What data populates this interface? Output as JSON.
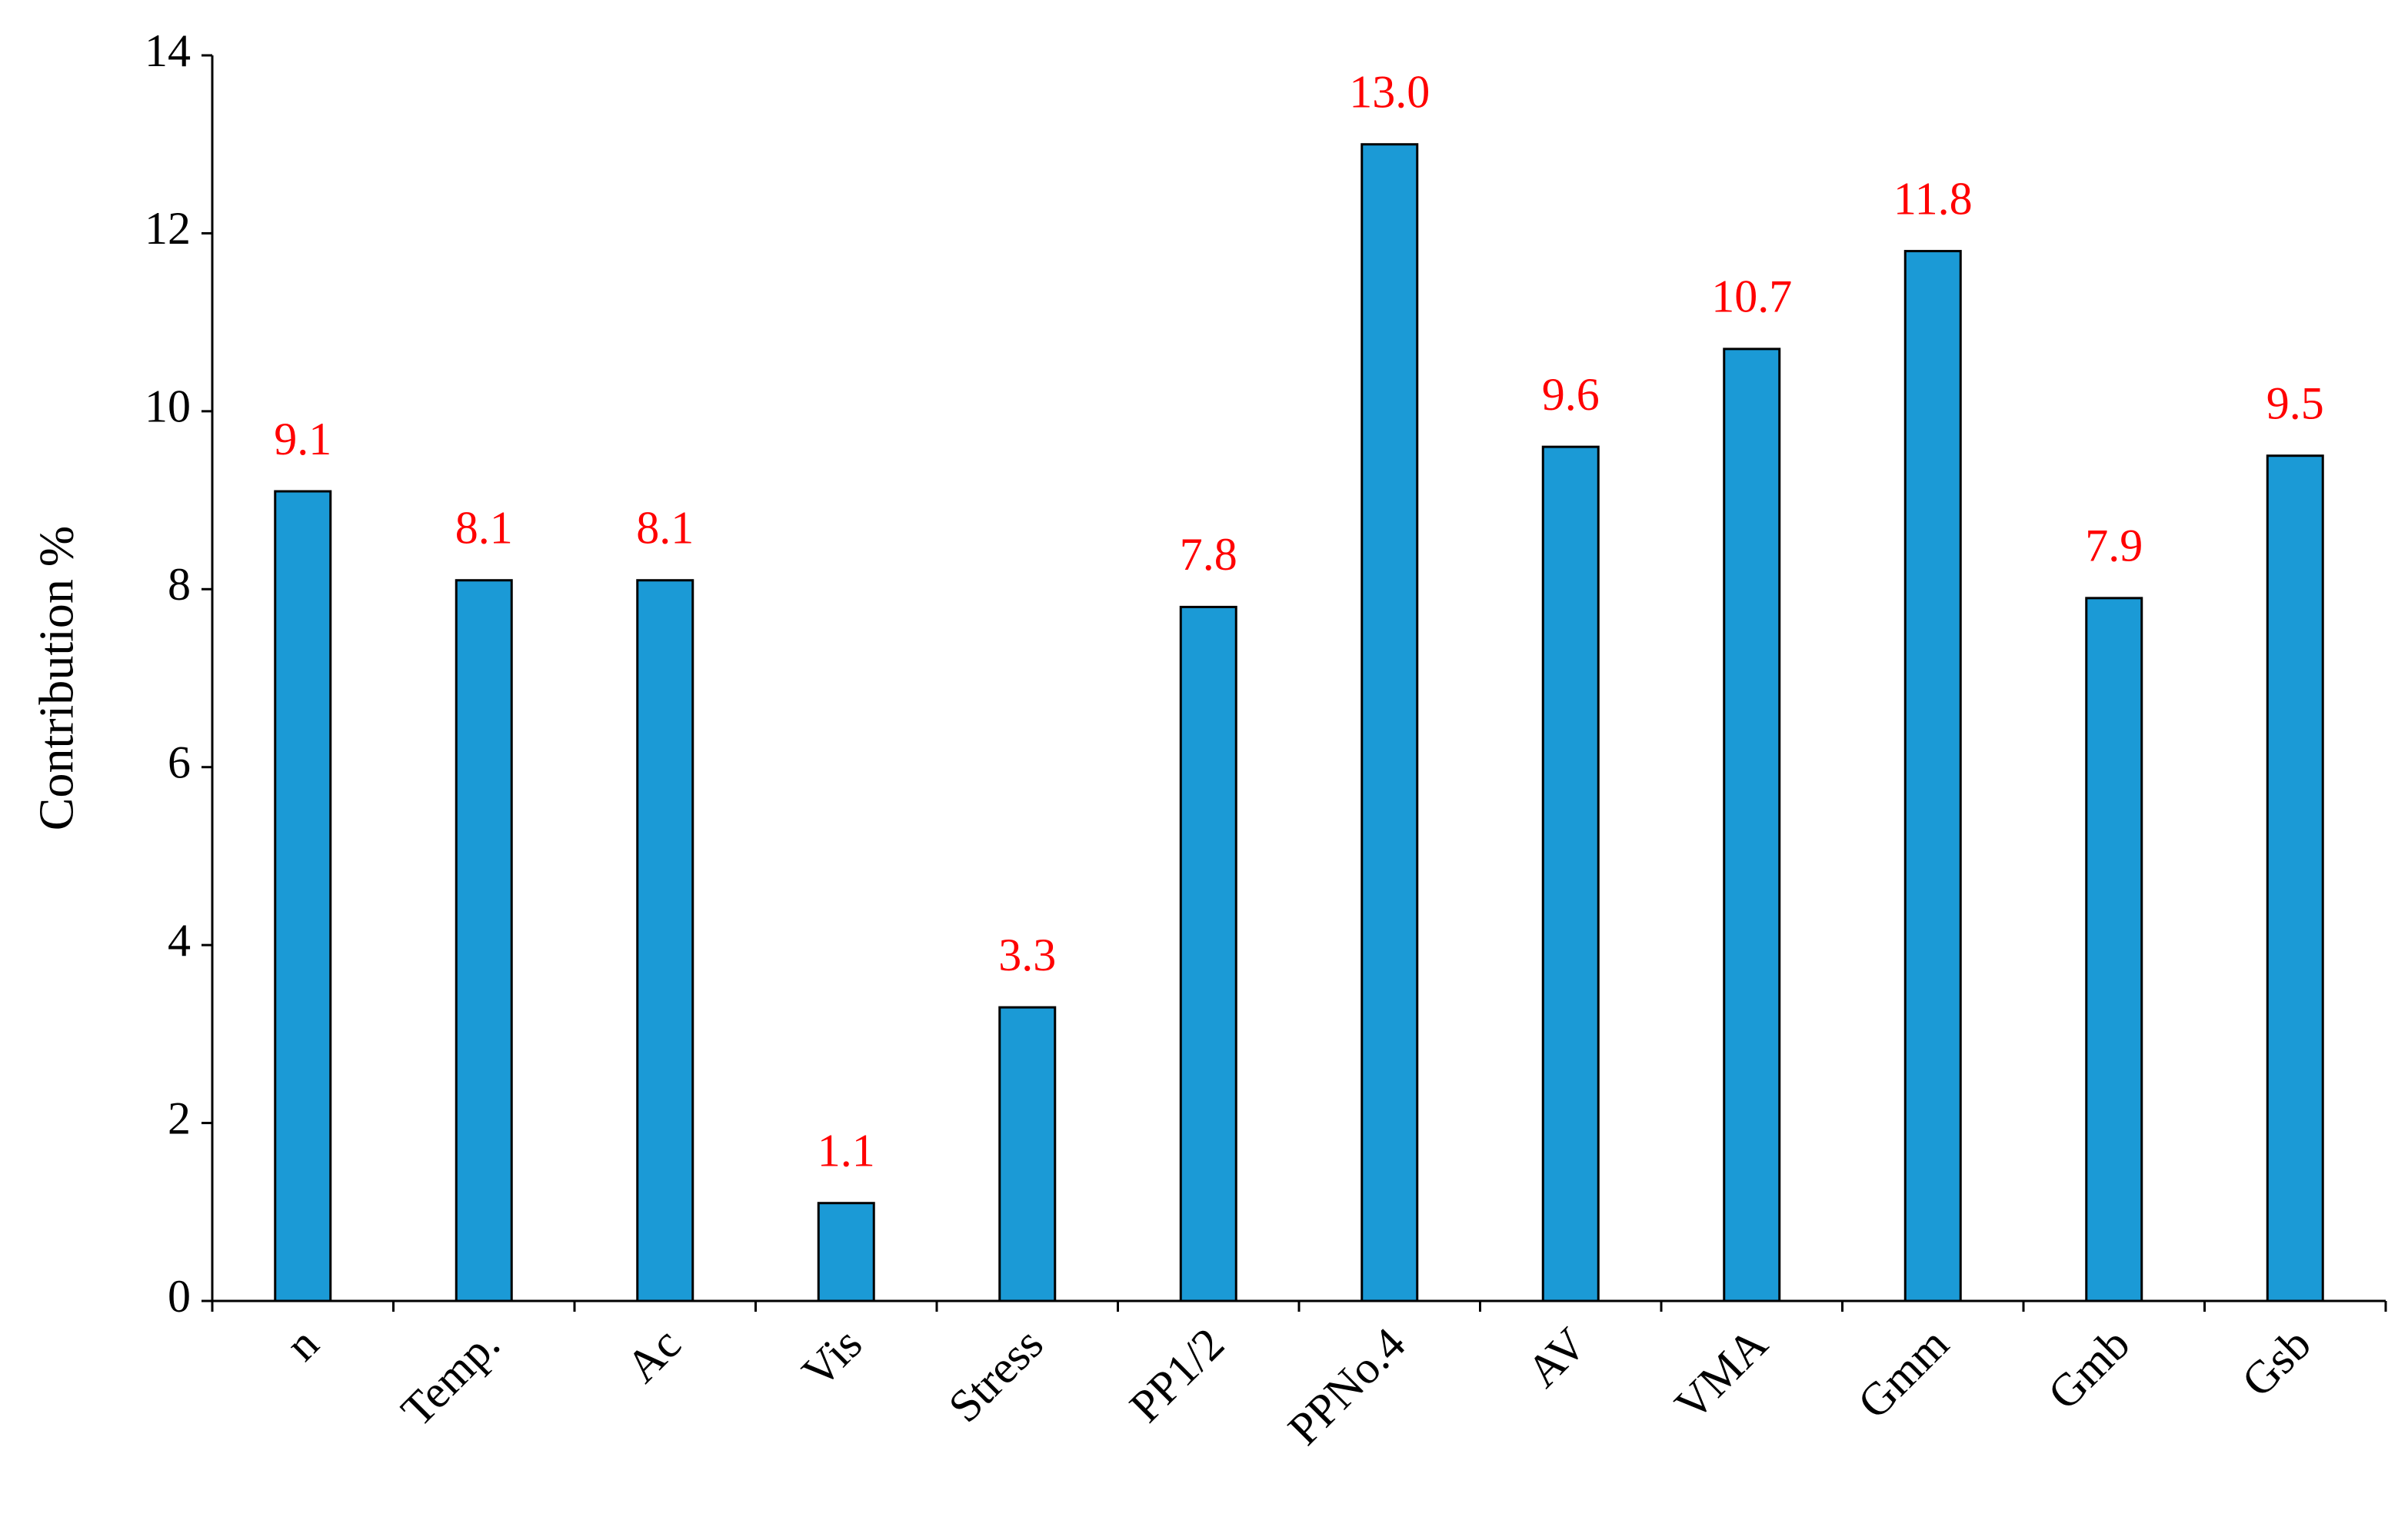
{
  "chart_data": {
    "type": "bar",
    "y_label": "Contribution %",
    "categories": [
      "n",
      "Temp.",
      "Ac",
      "Vis",
      "Stress",
      "PP1/2",
      "PPNo.4",
      "AV",
      "VMA",
      "Gmm",
      "Gmb",
      "Gsb"
    ],
    "values": [
      9.1,
      8.1,
      8.1,
      1.1,
      3.3,
      7.8,
      13.0,
      9.6,
      10.7,
      11.8,
      7.9,
      9.5
    ],
    "value_labels": [
      "9.1",
      "8.1",
      "8.1",
      "1.1",
      "3.3",
      "7.8",
      "13.0",
      "9.6",
      "10.7",
      "11.8",
      "7.9",
      "9.5"
    ],
    "color": "#1b9ad6",
    "label_color": "#ff0000",
    "ylim": [
      0,
      14
    ],
    "yticks": [
      0,
      2,
      4,
      6,
      8,
      10,
      12,
      14
    ],
    "grid": false
  }
}
